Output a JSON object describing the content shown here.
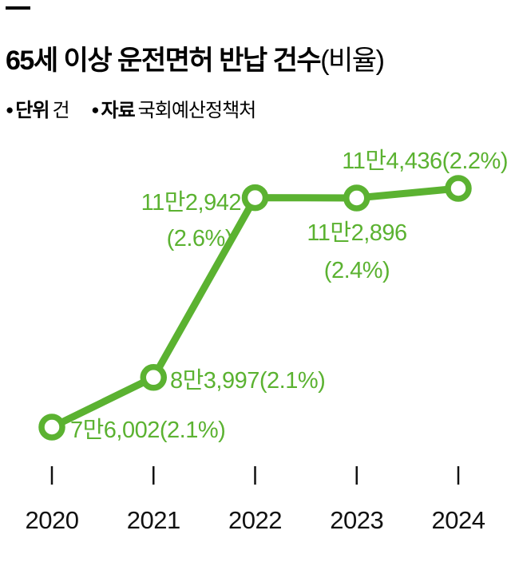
{
  "page": {
    "title_main": "65세 이상 운전면허 반납 건수",
    "title_suffix": "(비율)",
    "meta": [
      {
        "bullet": "●",
        "label": "단위",
        "value": "건"
      },
      {
        "bullet": "●",
        "label": "자료",
        "value": "국회예산정책처"
      }
    ]
  },
  "colors": {
    "line": "#5bb231",
    "label": "#5bb231",
    "point_fill": "#ffffff",
    "axis": "#111111",
    "background": "#ffffff"
  },
  "chart_data": {
    "type": "line",
    "title": "65세 이상 운전면허 반납 건수(비율)",
    "unit": "건",
    "source": "국회예산정책처",
    "xlabel": "",
    "ylabel": "",
    "categories": [
      "2020",
      "2021",
      "2022",
      "2023",
      "2024"
    ],
    "values": [
      76002,
      83997,
      112942,
      112896,
      114436
    ],
    "percentages": [
      2.1,
      2.1,
      2.6,
      2.4,
      2.2
    ],
    "point_labels": [
      [
        "7만6,002(2.1%)"
      ],
      [
        "8만3,997(2.1%)"
      ],
      [
        "11만2,942",
        "(2.6%)"
      ],
      [
        "11만2,896",
        "(2.4%)"
      ],
      [
        "11만4,436(2.2%)"
      ]
    ],
    "ylim": [
      70000,
      120000
    ],
    "grid": false,
    "legend": "none"
  }
}
